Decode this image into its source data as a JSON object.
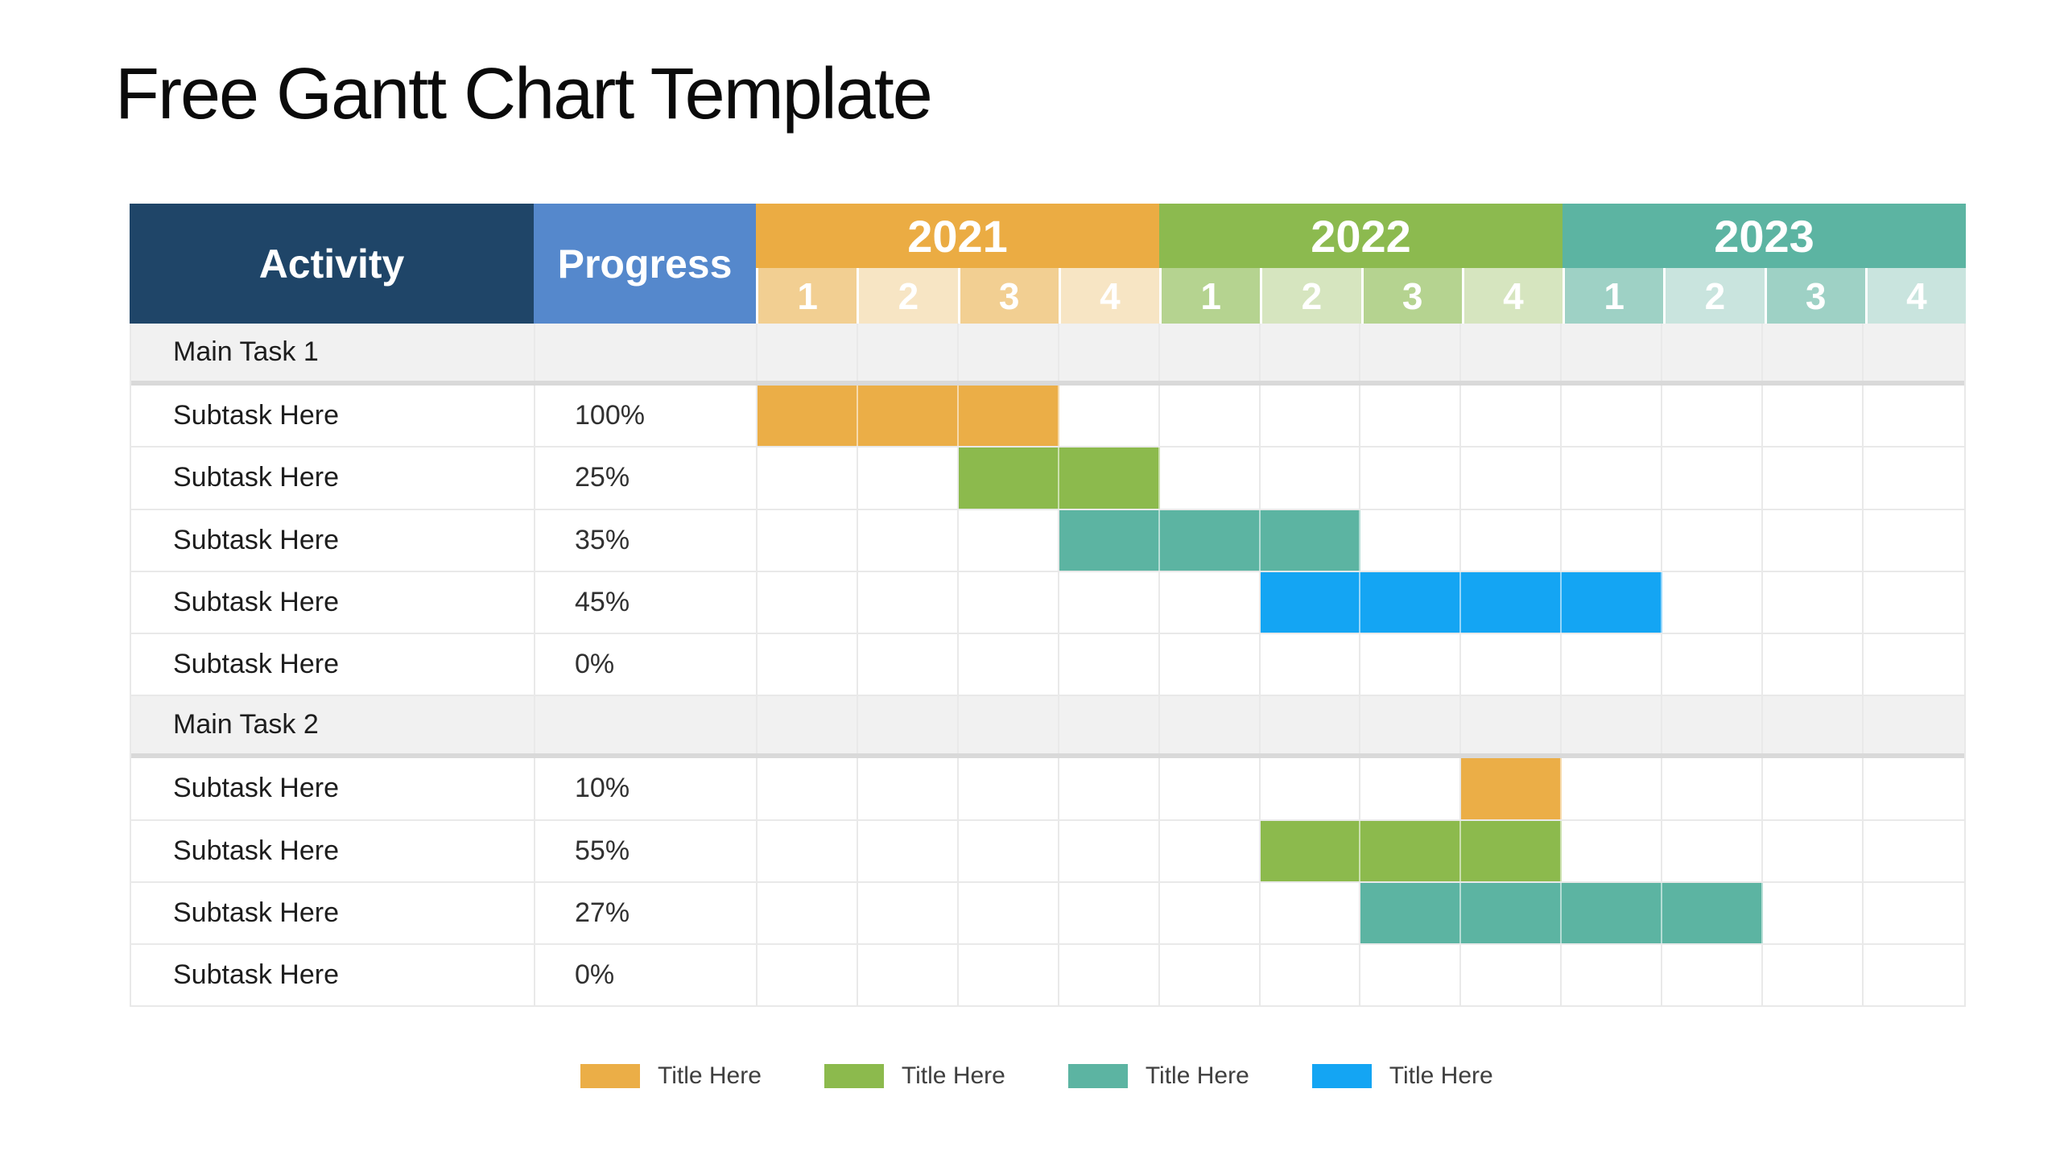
{
  "title": "Free Gantt Chart Template",
  "colors": {
    "header_activity": "#1F4568",
    "header_progress": "#5588CC",
    "header_2021": "#EBAC43",
    "header_2022": "#8CBA4F",
    "header_2023": "#5CB4A2",
    "q2021_a": "#F2CF92",
    "q2021_b": "#F7E5C4",
    "q2022_a": "#B5D390",
    "q2022_b": "#D6E5BF",
    "q2023_a": "#9ED1C5",
    "q2023_b": "#C9E4DE",
    "bar_orange": "#EBAE47",
    "bar_green": "#8CBA4D",
    "bar_teal": "#5CB4A2",
    "bar_blue": "#14A5F3",
    "row_main_bg": "#F1F1F1",
    "grid_line": "#E9E9E9",
    "grid_line_strong": "#D9D9D9"
  },
  "table": {
    "headers": {
      "activity": "Activity",
      "progress": "Progress"
    },
    "years": [
      {
        "label": "2021",
        "quarters": [
          "1",
          "2",
          "3",
          "4"
        ]
      },
      {
        "label": "2022",
        "quarters": [
          "1",
          "2",
          "3",
          "4"
        ]
      },
      {
        "label": "2023",
        "quarters": [
          "1",
          "2",
          "3",
          "4"
        ]
      }
    ],
    "rows": [
      {
        "type": "main",
        "activity": "Main Task 1",
        "progress": ""
      },
      {
        "type": "sub",
        "activity": "Subtask Here",
        "progress": "100%",
        "bar": {
          "start": 1,
          "span": 3,
          "color": "orange"
        }
      },
      {
        "type": "sub",
        "activity": "Subtask Here",
        "progress": "25%",
        "bar": {
          "start": 3,
          "span": 2,
          "color": "green"
        }
      },
      {
        "type": "sub",
        "activity": "Subtask Here",
        "progress": "35%",
        "bar": {
          "start": 4,
          "span": 3,
          "color": "teal"
        }
      },
      {
        "type": "sub",
        "activity": "Subtask Here",
        "progress": "45%",
        "bar": {
          "start": 6,
          "span": 4,
          "color": "blue"
        }
      },
      {
        "type": "sub",
        "activity": "Subtask Here",
        "progress": "0%",
        "bar": null
      },
      {
        "type": "main",
        "activity": "Main Task 2",
        "progress": ""
      },
      {
        "type": "sub",
        "activity": "Subtask Here",
        "progress": "10%",
        "bar": {
          "start": 8,
          "span": 1,
          "color": "orange"
        }
      },
      {
        "type": "sub",
        "activity": "Subtask Here",
        "progress": "55%",
        "bar": {
          "start": 6,
          "span": 3,
          "color": "green"
        }
      },
      {
        "type": "sub",
        "activity": "Subtask Here",
        "progress": "27%",
        "bar": {
          "start": 7,
          "span": 4,
          "color": "teal"
        }
      },
      {
        "type": "sub",
        "activity": "Subtask Here",
        "progress": "0%",
        "bar": null
      }
    ]
  },
  "legend": [
    {
      "color": "orange",
      "label": "Title Here"
    },
    {
      "color": "green",
      "label": "Title Here"
    },
    {
      "color": "teal",
      "label": "Title Here"
    },
    {
      "color": "blue",
      "label": "Title Here"
    }
  ],
  "chart_data": {
    "type": "table",
    "subtype": "gantt",
    "title": "Free Gantt Chart Template",
    "timeline": {
      "years": [
        2021,
        2022,
        2023
      ],
      "quarters_per_year": 4
    },
    "columns": [
      "Activity",
      "Progress",
      "2021 Q1",
      "2021 Q2",
      "2021 Q3",
      "2021 Q4",
      "2022 Q1",
      "2022 Q2",
      "2022 Q3",
      "2022 Q4",
      "2023 Q1",
      "2023 Q2",
      "2023 Q3",
      "2023 Q4"
    ],
    "tasks": [
      {
        "name": "Main Task 1",
        "subtasks": [
          {
            "name": "Subtask Here",
            "progress_pct": 100,
            "start": "2021 Q1",
            "end": "2021 Q3",
            "color": "#EBAE47"
          },
          {
            "name": "Subtask Here",
            "progress_pct": 25,
            "start": "2021 Q3",
            "end": "2021 Q4",
            "color": "#8CBA4D"
          },
          {
            "name": "Subtask Here",
            "progress_pct": 35,
            "start": "2021 Q4",
            "end": "2022 Q2",
            "color": "#5CB4A2"
          },
          {
            "name": "Subtask Here",
            "progress_pct": 45,
            "start": "2022 Q2",
            "end": "2023 Q1",
            "color": "#14A5F3"
          },
          {
            "name": "Subtask Here",
            "progress_pct": 0,
            "start": null,
            "end": null,
            "color": null
          }
        ]
      },
      {
        "name": "Main Task 2",
        "subtasks": [
          {
            "name": "Subtask Here",
            "progress_pct": 10,
            "start": "2022 Q4",
            "end": "2022 Q4",
            "color": "#EBAE47"
          },
          {
            "name": "Subtask Here",
            "progress_pct": 55,
            "start": "2022 Q2",
            "end": "2022 Q4",
            "color": "#8CBA4D"
          },
          {
            "name": "Subtask Here",
            "progress_pct": 27,
            "start": "2022 Q3",
            "end": "2023 Q2",
            "color": "#5CB4A2"
          },
          {
            "name": "Subtask Here",
            "progress_pct": 0,
            "start": null,
            "end": null,
            "color": null
          }
        ]
      }
    ],
    "legend_entries": [
      "Title Here",
      "Title Here",
      "Title Here",
      "Title Here"
    ],
    "legend_colors": [
      "#EBAE47",
      "#8CBA4D",
      "#5CB4A2",
      "#14A5F3"
    ],
    "grid": true,
    "legend_position": "bottom"
  }
}
